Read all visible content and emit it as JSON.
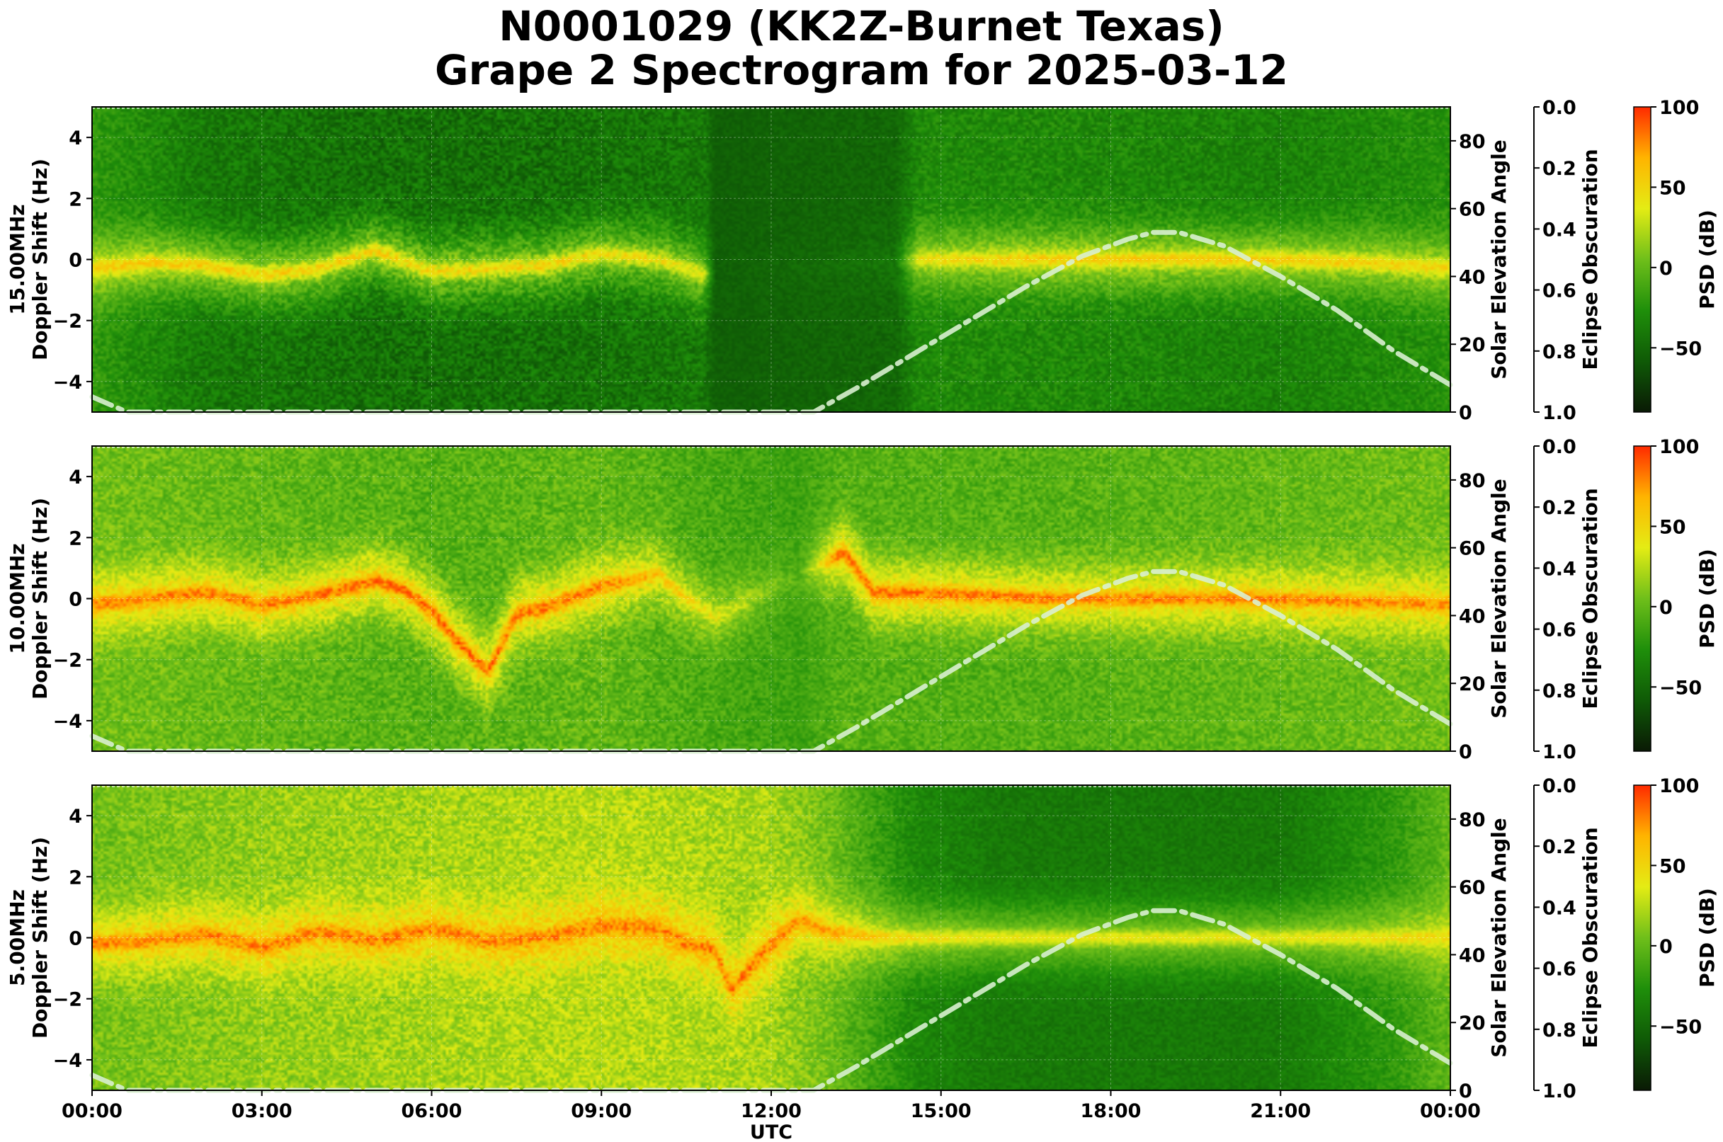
{
  "title_line1": "N0001029 (KK2Z-Burnet Texas)",
  "title_line2": "Grape 2 Spectrogram for 2025-03-12",
  "colors": {
    "psd_colormap": [
      "#0a1a05",
      "#0f5a06",
      "#1f8f0a",
      "#6fbf1a",
      "#e4ec14",
      "#ffb400",
      "#ff2a00"
    ],
    "solar_curve": "#d9f0d0"
  },
  "chart_data": [
    {
      "type": "heatmap",
      "panel": "15.00MHz",
      "ylabel_line1": "15.00MHz",
      "ylabel_line2": "Doppler Shift (Hz)",
      "y2label": "Solar Elevation Angle",
      "y3label": "Eclipse Obscuration",
      "colorbar_label": "PSD (dB)",
      "xlim": [
        "00:00",
        "24:00"
      ],
      "ylim": [
        -5,
        5
      ],
      "y_ticks": [
        -4,
        -2,
        0,
        2,
        4
      ],
      "y_tick_labels": [
        "−4",
        "−2",
        "0",
        "2",
        "4"
      ],
      "y2lim": [
        0,
        90
      ],
      "y2_ticks": [
        0,
        20,
        40,
        60,
        80
      ],
      "y2_tick_labels": [
        "0",
        "20",
        "40",
        "60",
        "80"
      ],
      "y3lim": [
        1.0,
        0.0
      ],
      "y3_ticks": [
        0.0,
        0.2,
        0.4,
        0.6,
        0.8,
        1.0
      ],
      "y3_tick_labels": [
        "0.0",
        "0.2",
        "0.4",
        "0.6",
        "0.8",
        "1.0"
      ],
      "colorbar_range": [
        -90,
        100
      ],
      "colorbar_ticks": [
        -50,
        0,
        50,
        100
      ],
      "colorbar_tick_labels": [
        "−50",
        "0",
        "50",
        "100"
      ],
      "grid": true,
      "psd_profile": [
        {
          "t": 0,
          "bg": -20,
          "line": 55,
          "noise": 12
        },
        {
          "t": 2,
          "bg": -40,
          "line": 55,
          "noise": 14
        },
        {
          "t": 5,
          "bg": -45,
          "line": 50,
          "noise": 18
        },
        {
          "t": 8,
          "bg": -45,
          "line": 50,
          "noise": 18
        },
        {
          "t": 10.8,
          "bg": -40,
          "line": 40,
          "noise": 15
        },
        {
          "t": 11,
          "bg": -55,
          "line": -55,
          "noise": 5
        },
        {
          "t": 14.2,
          "bg": -50,
          "line": -40,
          "noise": 8
        },
        {
          "t": 14.6,
          "bg": -30,
          "line": 45,
          "noise": 12
        },
        {
          "t": 17,
          "bg": -30,
          "line": 55,
          "noise": 14
        },
        {
          "t": 21,
          "bg": -35,
          "line": 55,
          "noise": 12
        },
        {
          "t": 24,
          "bg": -25,
          "line": 50,
          "noise": 12
        }
      ],
      "doppler_trace": [
        [
          0,
          -0.3
        ],
        [
          1,
          -0.1
        ],
        [
          2,
          -0.2
        ],
        [
          3,
          -0.5
        ],
        [
          4,
          -0.3
        ],
        [
          5,
          0.3
        ],
        [
          6,
          -0.4
        ],
        [
          7,
          -0.3
        ],
        [
          8,
          -0.2
        ],
        [
          9,
          0.2
        ],
        [
          10,
          0.0
        ],
        [
          10.8,
          -0.5
        ],
        [
          14.5,
          0.0
        ],
        [
          16,
          0.0
        ],
        [
          18,
          0.0
        ],
        [
          19.5,
          0.0
        ],
        [
          21,
          0.0
        ],
        [
          22.5,
          -0.1
        ],
        [
          24,
          -0.3
        ]
      ],
      "solar_elevation": [
        [
          0,
          4.5
        ],
        [
          0.62,
          0
        ],
        [
          12.75,
          0
        ],
        [
          13.5,
          7
        ],
        [
          14.5,
          17
        ],
        [
          15.5,
          27
        ],
        [
          16.5,
          37
        ],
        [
          17.5,
          46
        ],
        [
          18.3,
          51
        ],
        [
          18.75,
          53
        ],
        [
          19.2,
          53
        ],
        [
          20,
          49
        ],
        [
          21,
          40
        ],
        [
          22,
          30
        ],
        [
          23,
          18
        ],
        [
          24,
          8
        ]
      ]
    },
    {
      "type": "heatmap",
      "panel": "10.00MHz",
      "ylabel_line1": "10.00MHz",
      "ylabel_line2": "Doppler Shift (Hz)",
      "y2label": "Solar Elevation Angle",
      "y3label": "Eclipse Obscuration",
      "colorbar_label": "PSD (dB)",
      "xlim": [
        "00:00",
        "24:00"
      ],
      "ylim": [
        -5,
        5
      ],
      "y_ticks": [
        -4,
        -2,
        0,
        2,
        4
      ],
      "y_tick_labels": [
        "−4",
        "−2",
        "0",
        "2",
        "4"
      ],
      "y2lim": [
        0,
        90
      ],
      "y2_ticks": [
        0,
        20,
        40,
        60,
        80
      ],
      "y2_tick_labels": [
        "0",
        "20",
        "40",
        "60",
        "80"
      ],
      "y3lim": [
        1.0,
        0.0
      ],
      "y3_ticks": [
        0.0,
        0.2,
        0.4,
        0.6,
        0.8,
        1.0
      ],
      "y3_tick_labels": [
        "0.0",
        "0.2",
        "0.4",
        "0.6",
        "0.8",
        "1.0"
      ],
      "colorbar_range": [
        -90,
        100
      ],
      "colorbar_ticks": [
        -50,
        0,
        50,
        100
      ],
      "colorbar_tick_labels": [
        "−50",
        "0",
        "50",
        "100"
      ],
      "grid": true,
      "psd_profile": [
        {
          "t": 0,
          "bg": 5,
          "line": 80,
          "noise": 14
        },
        {
          "t": 3,
          "bg": 0,
          "line": 80,
          "noise": 15
        },
        {
          "t": 6,
          "bg": -5,
          "line": 85,
          "noise": 16
        },
        {
          "t": 9,
          "bg": 0,
          "line": 80,
          "noise": 16
        },
        {
          "t": 11,
          "bg": -10,
          "line": 40,
          "noise": 14
        },
        {
          "t": 12.5,
          "bg": -15,
          "line": -5,
          "noise": 10
        },
        {
          "t": 13.2,
          "bg": -5,
          "line": 85,
          "noise": 14
        },
        {
          "t": 17,
          "bg": -5,
          "line": 80,
          "noise": 14
        },
        {
          "t": 21,
          "bg": 0,
          "line": 80,
          "noise": 14
        },
        {
          "t": 24,
          "bg": 5,
          "line": 75,
          "noise": 14
        }
      ],
      "doppler_trace": [
        [
          0,
          -0.2
        ],
        [
          1,
          0.0
        ],
        [
          2,
          0.2
        ],
        [
          3,
          -0.2
        ],
        [
          4,
          0.1
        ],
        [
          5,
          0.6
        ],
        [
          5.5,
          0.3
        ],
        [
          6,
          -0.4
        ],
        [
          6.5,
          -1.5
        ],
        [
          7,
          -2.4
        ],
        [
          7.5,
          -0.5
        ],
        [
          8,
          -0.3
        ],
        [
          9,
          0.4
        ],
        [
          10,
          0.8
        ],
        [
          10.5,
          0.0
        ],
        [
          11,
          -0.6
        ],
        [
          13.3,
          1.5
        ],
        [
          13.8,
          0.2
        ],
        [
          15,
          0.15
        ],
        [
          17,
          0.0
        ],
        [
          18,
          0.0
        ],
        [
          19,
          0.0
        ],
        [
          20,
          0.0
        ],
        [
          21.5,
          -0.05
        ],
        [
          24,
          -0.2
        ]
      ],
      "solar_elevation": [
        [
          0,
          4.5
        ],
        [
          0.62,
          0
        ],
        [
          12.75,
          0
        ],
        [
          13.5,
          7
        ],
        [
          14.5,
          17
        ],
        [
          15.5,
          27
        ],
        [
          16.5,
          37
        ],
        [
          17.5,
          46
        ],
        [
          18.3,
          51
        ],
        [
          18.75,
          53
        ],
        [
          19.2,
          53
        ],
        [
          20,
          49
        ],
        [
          21,
          40
        ],
        [
          22,
          30
        ],
        [
          23,
          18
        ],
        [
          24,
          8
        ]
      ]
    },
    {
      "type": "heatmap",
      "panel": "5.00MHz",
      "ylabel_line1": "5.00MHz",
      "ylabel_line2": "Doppler Shift (Hz)",
      "y2label": "Solar Elevation Angle",
      "y3label": "Eclipse Obscuration",
      "colorbar_label": "PSD (dB)",
      "xlabel": "UTC",
      "xlim": [
        "00:00",
        "24:00"
      ],
      "x_ticks": [
        0,
        3,
        6,
        9,
        12,
        15,
        18,
        21,
        24
      ],
      "x_tick_labels": [
        "00:00",
        "03:00",
        "06:00",
        "09:00",
        "12:00",
        "15:00",
        "18:00",
        "21:00",
        "00:00"
      ],
      "ylim": [
        -5,
        5
      ],
      "y_ticks": [
        -4,
        -2,
        0,
        2,
        4
      ],
      "y_tick_labels": [
        "−4",
        "−2",
        "0",
        "2",
        "4"
      ],
      "y2lim": [
        0,
        90
      ],
      "y2_ticks": [
        0,
        20,
        40,
        60,
        80
      ],
      "y2_tick_labels": [
        "0",
        "20",
        "40",
        "60",
        "80"
      ],
      "y3lim": [
        1.0,
        0.0
      ],
      "y3_ticks": [
        0.0,
        0.2,
        0.4,
        0.6,
        0.8,
        1.0
      ],
      "y3_tick_labels": [
        "0.0",
        "0.2",
        "0.4",
        "0.6",
        "0.8",
        "1.0"
      ],
      "colorbar_range": [
        -90,
        100
      ],
      "colorbar_ticks": [
        -50,
        0,
        50,
        100
      ],
      "colorbar_tick_labels": [
        "−50",
        "0",
        "50",
        "100"
      ],
      "grid": true,
      "psd_profile": [
        {
          "t": 0,
          "bg": 5,
          "line": 80,
          "noise": 14
        },
        {
          "t": 3,
          "bg": 15,
          "line": 80,
          "noise": 16
        },
        {
          "t": 6,
          "bg": 20,
          "line": 80,
          "noise": 16
        },
        {
          "t": 9,
          "bg": 25,
          "line": 80,
          "noise": 16
        },
        {
          "t": 12,
          "bg": 20,
          "line": 80,
          "noise": 16
        },
        {
          "t": 13,
          "bg": 5,
          "line": 70,
          "noise": 14
        },
        {
          "t": 14.5,
          "bg": -30,
          "line": 45,
          "noise": 10
        },
        {
          "t": 16,
          "bg": -40,
          "line": 40,
          "noise": 8
        },
        {
          "t": 21,
          "bg": -40,
          "line": 40,
          "noise": 8
        },
        {
          "t": 23,
          "bg": -20,
          "line": 45,
          "noise": 10
        },
        {
          "t": 24,
          "bg": 0,
          "line": 50,
          "noise": 12
        }
      ],
      "doppler_trace": [
        [
          0,
          -0.2
        ],
        [
          1,
          -0.1
        ],
        [
          2,
          0.1
        ],
        [
          3,
          -0.3
        ],
        [
          4,
          0.2
        ],
        [
          5,
          -0.1
        ],
        [
          6,
          0.3
        ],
        [
          7,
          -0.1
        ],
        [
          8,
          0.0
        ],
        [
          9,
          0.4
        ],
        [
          10,
          0.3
        ],
        [
          10.5,
          -0.2
        ],
        [
          11,
          -0.4
        ],
        [
          11.3,
          -1.7
        ],
        [
          11.8,
          -0.6
        ],
        [
          12.5,
          0.6
        ],
        [
          13,
          0.2
        ],
        [
          14,
          0.0
        ],
        [
          18,
          0.0
        ],
        [
          24,
          0.0
        ]
      ],
      "solar_elevation": [
        [
          0,
          4.5
        ],
        [
          0.62,
          0
        ],
        [
          12.75,
          0
        ],
        [
          13.5,
          7
        ],
        [
          14.5,
          17
        ],
        [
          15.5,
          27
        ],
        [
          16.5,
          37
        ],
        [
          17.5,
          46
        ],
        [
          18.3,
          51
        ],
        [
          18.75,
          53
        ],
        [
          19.2,
          53
        ],
        [
          20,
          49
        ],
        [
          21,
          40
        ],
        [
          22,
          30
        ],
        [
          23,
          18
        ],
        [
          24,
          8
        ]
      ]
    }
  ]
}
